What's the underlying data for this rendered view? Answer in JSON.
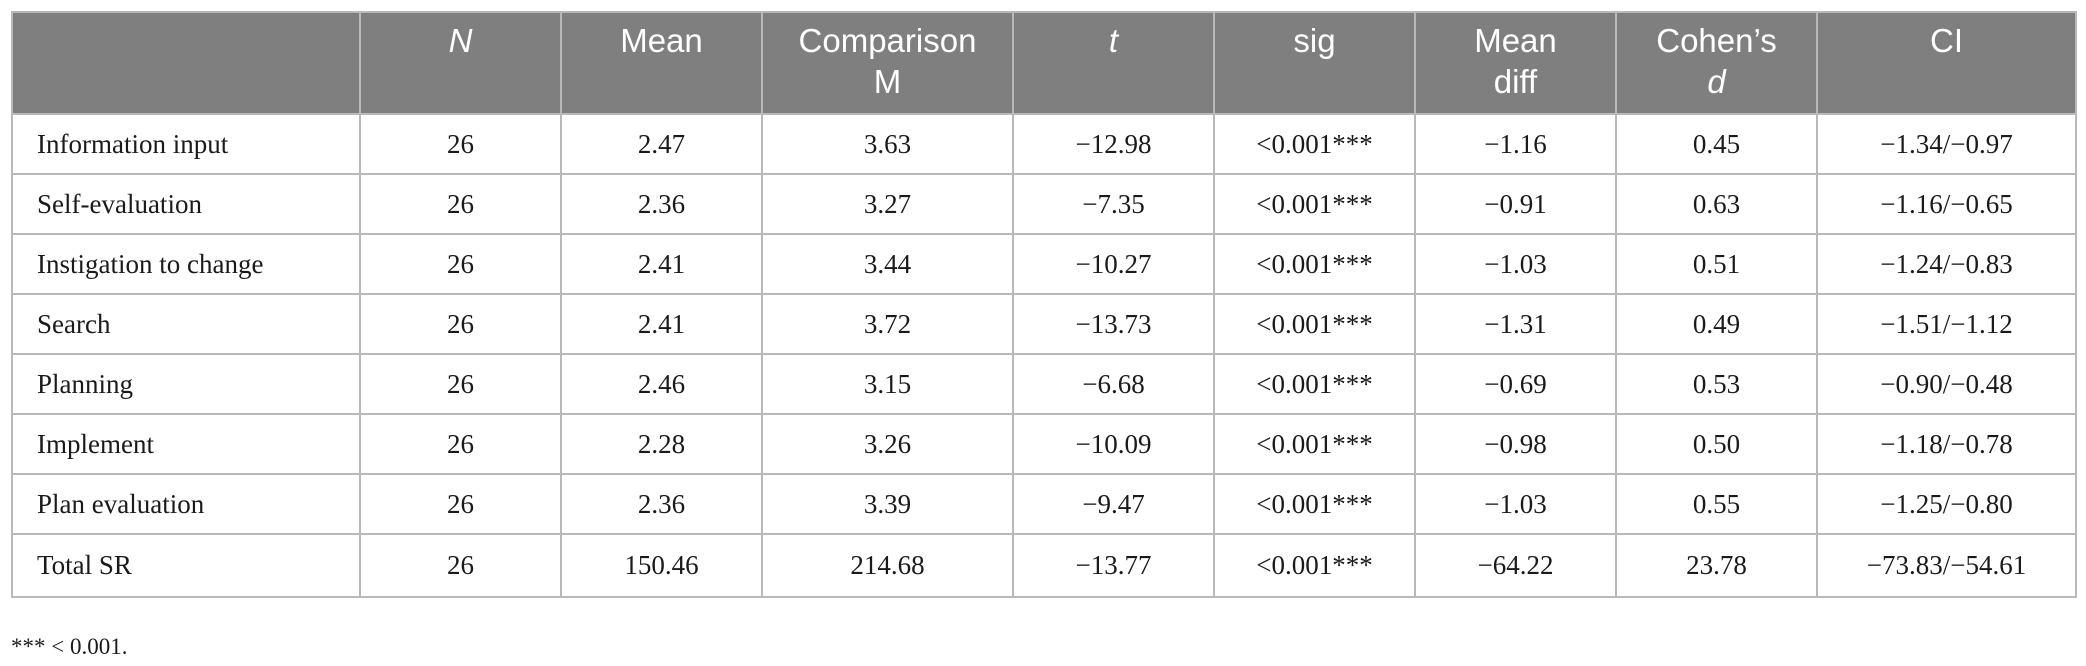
{
  "table": {
    "headers": [
      {
        "key": "label",
        "parts": []
      },
      {
        "key": "n",
        "parts": [
          {
            "text": "N",
            "italic": true
          }
        ]
      },
      {
        "key": "mean",
        "parts": [
          {
            "text": "Mean",
            "italic": false
          }
        ]
      },
      {
        "key": "comparison_m",
        "parts": [
          {
            "text": "Comparison",
            "italic": false
          },
          {
            "text": "M",
            "italic": false
          }
        ]
      },
      {
        "key": "t",
        "parts": [
          {
            "text": "t",
            "italic": true
          }
        ]
      },
      {
        "key": "sig",
        "parts": [
          {
            "text": "sig",
            "italic": false
          }
        ]
      },
      {
        "key": "mean_diff",
        "parts": [
          {
            "text": "Mean",
            "italic": false
          },
          {
            "text": "diff",
            "italic": false
          }
        ]
      },
      {
        "key": "cohens_d",
        "parts": [
          {
            "text": "Cohen’s",
            "italic": false
          },
          {
            "text": "d",
            "italic": true
          }
        ]
      },
      {
        "key": "ci",
        "parts": [
          {
            "text": "CI",
            "italic": false
          }
        ]
      }
    ],
    "rows": [
      {
        "label": "Information input",
        "n": "26",
        "mean": "2.47",
        "comparison_m": "3.63",
        "t": "−12.98",
        "sig": "<0.001***",
        "mean_diff": "−1.16",
        "cohens_d": "0.45",
        "ci": "−1.34/−0.97"
      },
      {
        "label": "Self-evaluation",
        "n": "26",
        "mean": "2.36",
        "comparison_m": "3.27",
        "t": "−7.35",
        "sig": "<0.001***",
        "mean_diff": "−0.91",
        "cohens_d": "0.63",
        "ci": "−1.16/−0.65"
      },
      {
        "label": "Instigation to change",
        "n": "26",
        "mean": "2.41",
        "comparison_m": "3.44",
        "t": "−10.27",
        "sig": "<0.001***",
        "mean_diff": "−1.03",
        "cohens_d": "0.51",
        "ci": "−1.24/−0.83"
      },
      {
        "label": "Search",
        "n": "26",
        "mean": "2.41",
        "comparison_m": "3.72",
        "t": "−13.73",
        "sig": "<0.001***",
        "mean_diff": "−1.31",
        "cohens_d": "0.49",
        "ci": "−1.51/−1.12"
      },
      {
        "label": "Planning",
        "n": "26",
        "mean": "2.46",
        "comparison_m": "3.15",
        "t": "−6.68",
        "sig": "<0.001***",
        "mean_diff": "−0.69",
        "cohens_d": "0.53",
        "ci": "−0.90/−0.48"
      },
      {
        "label": "Implement",
        "n": "26",
        "mean": "2.28",
        "comparison_m": "3.26",
        "t": "−10.09",
        "sig": "<0.001***",
        "mean_diff": "−0.98",
        "cohens_d": "0.50",
        "ci": "−1.18/−0.78"
      },
      {
        "label": "Plan evaluation",
        "n": "26",
        "mean": "2.36",
        "comparison_m": "3.39",
        "t": "−9.47",
        "sig": "<0.001***",
        "mean_diff": "−1.03",
        "cohens_d": "0.55",
        "ci": "−1.25/−0.80"
      },
      {
        "label": "Total SR",
        "n": "26",
        "mean": "150.46",
        "comparison_m": "214.68",
        "t": "−13.77",
        "sig": "<0.001***",
        "mean_diff": "−64.22",
        "cohens_d": "23.78",
        "ci": "−73.83/−54.61"
      }
    ]
  },
  "footnote": "*** < 0.001.",
  "colors": {
    "header_bg": "#7f7f7f",
    "header_text": "#ffffff",
    "border": "#b9b9b9",
    "body_text": "#1a1a1a"
  }
}
